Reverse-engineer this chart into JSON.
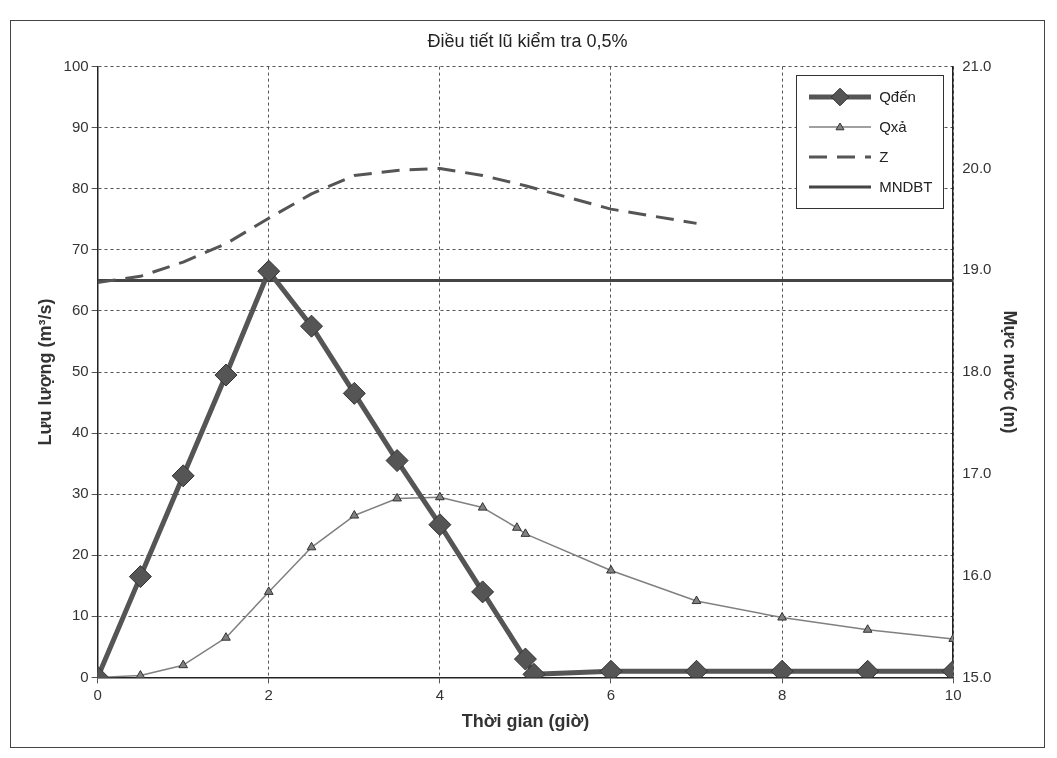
{
  "chart_data": {
    "type": "line",
    "title": "Điều tiết lũ kiểm tra 0,5%",
    "xlabel": "Thời gian (giờ)",
    "ylabel": "Lưu lượng (m³/s)",
    "y2label": "Mực nước (m)",
    "xlim": [
      0,
      10
    ],
    "xticks": [
      0,
      2,
      4,
      6,
      8,
      10
    ],
    "ylim": [
      0,
      100
    ],
    "yticks": [
      0,
      10,
      20,
      30,
      40,
      50,
      60,
      70,
      80,
      90,
      100
    ],
    "y2lim": [
      15,
      21
    ],
    "y2ticks": [
      {
        "value": 15,
        "label": "15.0"
      },
      {
        "value": 16,
        "label": "16.0"
      },
      {
        "value": 17,
        "label": "17.0"
      },
      {
        "value": 18,
        "label": "18.0"
      },
      {
        "value": 19,
        "label": "19.0"
      },
      {
        "value": 20,
        "label": "20.0"
      },
      {
        "value": 21,
        "label": "21.0"
      }
    ],
    "grid": true,
    "legend": "top right",
    "series": [
      {
        "name": "Qđến",
        "color": "#555555",
        "marker": "diamond",
        "line_style": "solid",
        "x": [
          0,
          0.5,
          1,
          1.5,
          2,
          2.5,
          3,
          3.5,
          4,
          4.5,
          5,
          5.1,
          6,
          7,
          8,
          9,
          10
        ],
        "values": [
          0,
          16.5,
          33,
          49.5,
          66.5,
          57.5,
          46.5,
          35.5,
          25,
          14,
          3,
          0.5,
          1,
          1,
          1,
          1,
          1
        ]
      },
      {
        "name": "Qxả",
        "color": "#808080",
        "marker": "triangle",
        "line_style": "solid",
        "x": [
          0,
          0.5,
          1,
          1.5,
          2,
          2.5,
          3,
          3.5,
          4,
          4.5,
          4.9,
          5,
          6,
          7,
          8,
          9,
          10
        ],
        "values": [
          0,
          0.3,
          2,
          6.5,
          14,
          21.3,
          26.5,
          29.3,
          29.5,
          27.8,
          24.5,
          23.5,
          17.5,
          12.5,
          9.8,
          7.8,
          6.3
        ]
      },
      {
        "name": "Z",
        "color": "#555555",
        "marker": "none",
        "line_style": "dashed",
        "axis": "y2",
        "x": [
          0,
          0.5,
          1,
          1.5,
          2,
          2.5,
          3,
          3.5,
          4,
          4.5,
          5,
          6,
          7
        ],
        "values": [
          18.88,
          18.94,
          19.08,
          19.26,
          19.51,
          19.75,
          19.93,
          19.98,
          20.0,
          19.93,
          19.83,
          19.6,
          19.46
        ]
      },
      {
        "name": "MNDBT",
        "color": "#444444",
        "marker": "none",
        "line_style": "solid",
        "axis": "y2",
        "x": [
          0,
          10
        ],
        "values": [
          18.9,
          18.9
        ]
      }
    ]
  }
}
